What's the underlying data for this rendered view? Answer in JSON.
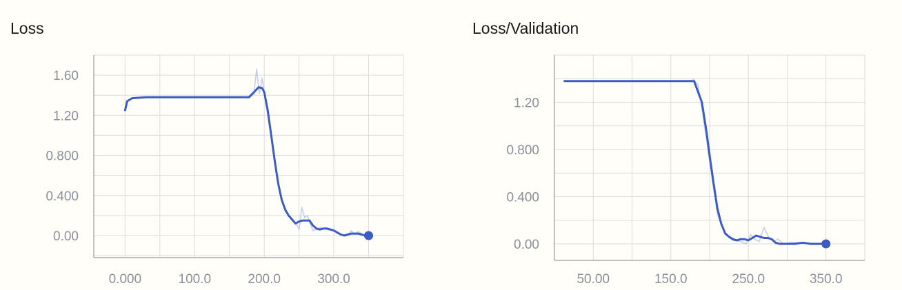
{
  "chart_data": [
    {
      "type": "line",
      "title": "Loss",
      "xlabel": "",
      "ylabel": "",
      "xlim": [
        -45,
        400
      ],
      "ylim": [
        -0.22,
        1.8
      ],
      "x_ticks": [
        0,
        100,
        200,
        300
      ],
      "x_tick_labels": [
        "0.000",
        "100.0",
        "200.0",
        "300.0"
      ],
      "y_ticks": [
        0,
        0.4,
        0.8,
        1.2,
        1.6
      ],
      "y_tick_labels": [
        "0.00",
        "0.400",
        "0.800",
        "1.20",
        "1.60"
      ],
      "grid": true,
      "colors": {
        "line": "#3a5cc4",
        "raw": "#c3ccf2",
        "grid": "#dcdcdc"
      },
      "series": [
        {
          "x": [
            0,
            3,
            10,
            30,
            60,
            100,
            150,
            178,
            185,
            192,
            197,
            200,
            205,
            210,
            215,
            220,
            225,
            230,
            235,
            240,
            245,
            250,
            255,
            260,
            265,
            270,
            275,
            280,
            285,
            290,
            295,
            300,
            305,
            310,
            315,
            320,
            325,
            330,
            335,
            340,
            345,
            350
          ],
          "y": [
            1.25,
            1.34,
            1.37,
            1.38,
            1.38,
            1.38,
            1.38,
            1.38,
            1.43,
            1.48,
            1.47,
            1.43,
            1.25,
            1.0,
            0.75,
            0.52,
            0.36,
            0.26,
            0.2,
            0.16,
            0.12,
            0.14,
            0.15,
            0.15,
            0.15,
            0.1,
            0.07,
            0.06,
            0.07,
            0.07,
            0.06,
            0.05,
            0.03,
            0.01,
            0.0,
            0.01,
            0.02,
            0.02,
            0.02,
            0.01,
            0.0,
            0.0
          ]
        }
      ],
      "raw_series": {
        "x": [
          175,
          180,
          185,
          189,
          193,
          197,
          201,
          205,
          210,
          220,
          230,
          240,
          245,
          250,
          254,
          258,
          262,
          266,
          270,
          275,
          280,
          290,
          300,
          310,
          320,
          325,
          330,
          335,
          340,
          345,
          350
        ],
        "y": [
          1.37,
          1.38,
          1.41,
          1.66,
          1.42,
          1.57,
          1.37,
          1.2,
          0.98,
          0.5,
          0.24,
          0.16,
          0.13,
          0.06,
          0.28,
          0.18,
          0.2,
          0.12,
          0.05,
          0.06,
          0.08,
          0.06,
          0.05,
          0.01,
          0.0,
          0.05,
          0.01,
          0.04,
          0.02,
          0.0,
          0.0
        ]
      },
      "end_point": {
        "x": 350,
        "y": 0.0
      }
    },
    {
      "type": "line",
      "title": "Loss/Validation",
      "xlabel": "",
      "ylabel": "",
      "xlim": [
        0,
        400
      ],
      "ylim": [
        -0.14,
        1.6
      ],
      "x_ticks": [
        50,
        150,
        250,
        350
      ],
      "x_tick_labels": [
        "50.00",
        "150.0",
        "250.0",
        "350.0"
      ],
      "y_ticks": [
        0,
        0.4,
        0.8,
        1.2
      ],
      "y_tick_labels": [
        "0.00",
        "0.400",
        "0.800",
        "1.20"
      ],
      "grid": true,
      "colors": {
        "line": "#3a5cc4",
        "raw": "#c3ccf2",
        "grid": "#dcdcdc"
      },
      "series": [
        {
          "x": [
            13,
            50,
            100,
            150,
            180,
            190,
            196,
            200,
            205,
            210,
            215,
            220,
            225,
            230,
            235,
            240,
            245,
            250,
            255,
            260,
            265,
            270,
            275,
            280,
            285,
            290,
            295,
            300,
            310,
            320,
            330,
            340,
            350
          ],
          "y": [
            1.38,
            1.38,
            1.38,
            1.38,
            1.38,
            1.2,
            0.95,
            0.75,
            0.52,
            0.3,
            0.17,
            0.09,
            0.06,
            0.04,
            0.03,
            0.04,
            0.04,
            0.03,
            0.05,
            0.07,
            0.06,
            0.05,
            0.05,
            0.04,
            0.01,
            0.0,
            0.0,
            0.0,
            0.0,
            0.01,
            0.0,
            0.0,
            0.0
          ]
        }
      ],
      "raw_series": {
        "x": [
          178,
          185,
          190,
          200,
          210,
          220,
          230,
          240,
          247,
          253,
          258,
          264,
          270,
          276,
          282,
          288,
          295,
          305,
          320,
          335,
          350
        ],
        "y": [
          1.4,
          1.35,
          1.15,
          0.7,
          0.25,
          0.08,
          0.03,
          0.02,
          0.0,
          0.08,
          0.04,
          0.02,
          0.14,
          0.06,
          0.02,
          0.04,
          0.0,
          0.01,
          0.01,
          0.0,
          0.0
        ]
      },
      "end_point": {
        "x": 350,
        "y": 0.0
      }
    }
  ]
}
